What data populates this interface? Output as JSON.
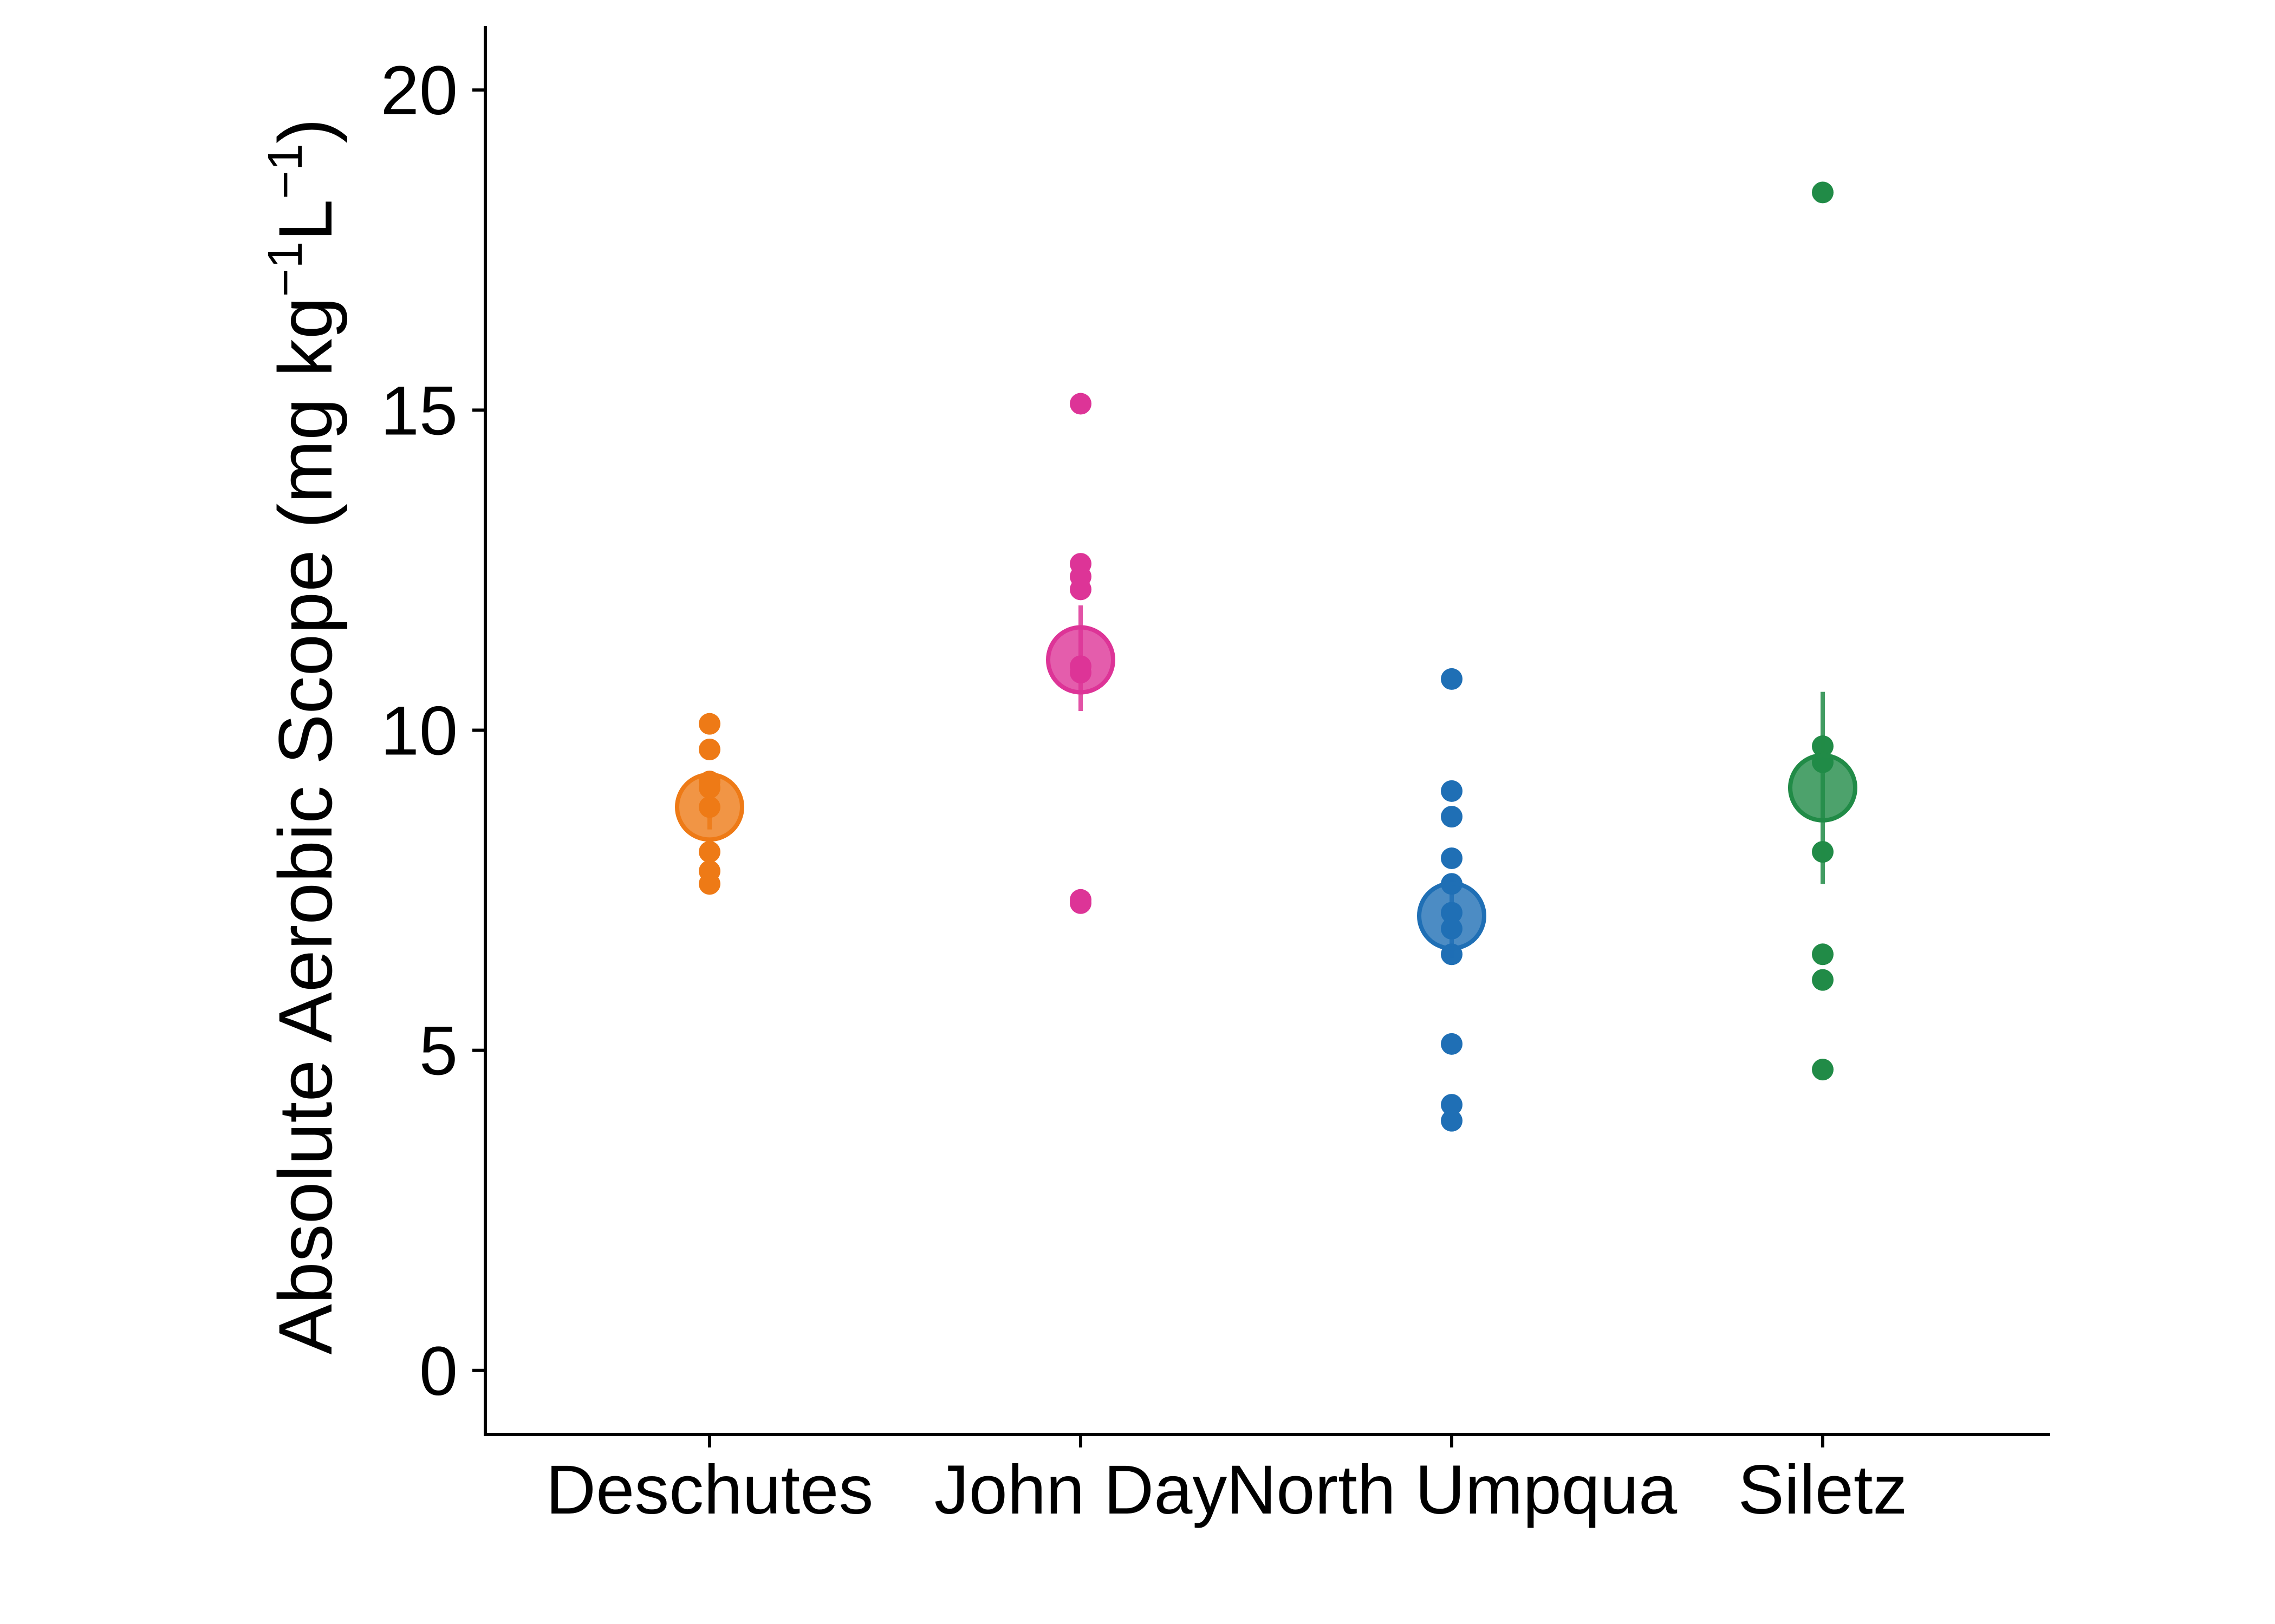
{
  "chart_data": {
    "type": "scatter",
    "title": "",
    "xlabel": "",
    "ylabel": {
      "text": "Absolute Aerobic Scope (mg kg",
      "sup1": "−1",
      "mid": "L",
      "sup2": "−1",
      "end": ")"
    },
    "ylim": [
      -1,
      21
    ],
    "yticks": [
      0,
      5,
      10,
      15,
      20
    ],
    "grid": false,
    "legend": "none",
    "categories": [
      "Deschutes",
      "John Day",
      "North Umpqua",
      "Siletz"
    ],
    "series": [
      {
        "category": "Deschutes",
        "color": "#EE7A16",
        "points": [
          10.1,
          9.7,
          9.2,
          9.1,
          8.8,
          8.1,
          7.8,
          7.6
        ],
        "mean": 8.8,
        "error": [
          8.45,
          9.15
        ]
      },
      {
        "category": "John Day",
        "color": "#DD3497",
        "points": [
          15.1,
          12.6,
          12.4,
          12.2,
          11.0,
          10.9,
          7.35,
          7.3
        ],
        "mean": 11.1,
        "error": [
          10.3,
          11.95
        ]
      },
      {
        "category": "North Umpqua",
        "color": "#1F6FB5",
        "points": [
          10.8,
          9.05,
          8.65,
          8.0,
          7.6,
          7.15,
          6.9,
          6.5,
          5.1,
          4.15,
          3.9
        ],
        "mean": 7.1,
        "error": [
          6.45,
          7.75
        ]
      },
      {
        "category": "Siletz",
        "color": "#218B47",
        "points": [
          18.4,
          9.75,
          9.5,
          8.1,
          6.5,
          6.1,
          4.7
        ],
        "mean": 9.1,
        "error": [
          7.6,
          10.6
        ]
      }
    ]
  }
}
